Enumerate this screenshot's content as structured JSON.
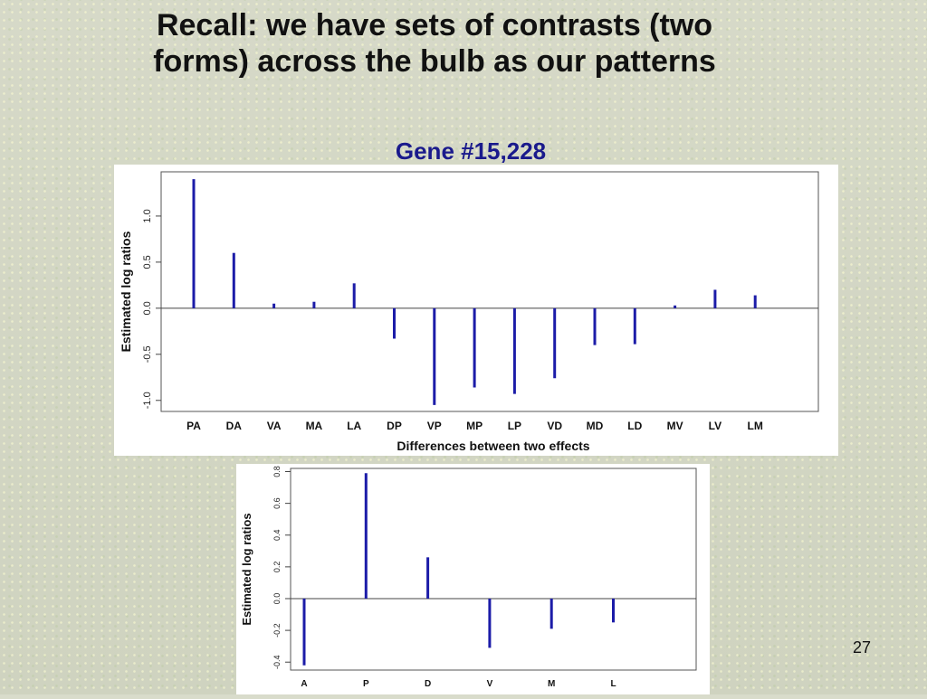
{
  "slide": {
    "title_line1": "Recall: we have sets of contrasts (two",
    "title_line2": "forms) across the bulb as our patterns",
    "gene_label": "Gene #15,228",
    "page_number": "27"
  },
  "chart_data": [
    {
      "type": "bar",
      "xlabel": "Differences between two effects",
      "ylabel": "Estimated log ratios",
      "categories": [
        "PA",
        "DA",
        "VA",
        "MA",
        "LA",
        "DP",
        "VP",
        "MP",
        "LP",
        "VD",
        "MD",
        "LD",
        "MV",
        "LV",
        "LM"
      ],
      "values": [
        1.4,
        0.6,
        0.05,
        0.07,
        0.27,
        -0.33,
        -1.05,
        -0.86,
        -0.93,
        -0.76,
        -0.4,
        -0.39,
        0.03,
        0.2,
        0.14
      ],
      "ylim": [
        -1.12,
        1.48
      ],
      "yticks": [
        -1.0,
        -0.5,
        0.0,
        0.5,
        1.0
      ],
      "yticklabels": [
        "-1.0",
        "-0.5",
        "0.0",
        "0.5",
        "1.0"
      ],
      "bar_color": "#1c1ca8",
      "zero_line": true
    },
    {
      "type": "bar",
      "xlabel": "",
      "ylabel": "Estimated log ratios",
      "categories": [
        "A",
        "P",
        "D",
        "V",
        "M",
        "L"
      ],
      "values": [
        -0.42,
        0.79,
        0.26,
        -0.31,
        -0.19,
        -0.15
      ],
      "ylim": [
        -0.45,
        0.82
      ],
      "yticks": [
        -0.4,
        -0.2,
        0.0,
        0.2,
        0.4,
        0.6,
        0.8
      ],
      "yticklabels": [
        "-0.4",
        "-0.2",
        "0.0",
        "0.2",
        "0.4",
        "0.6",
        "0.8"
      ],
      "bar_color": "#1c1ca8",
      "zero_line": true
    }
  ]
}
